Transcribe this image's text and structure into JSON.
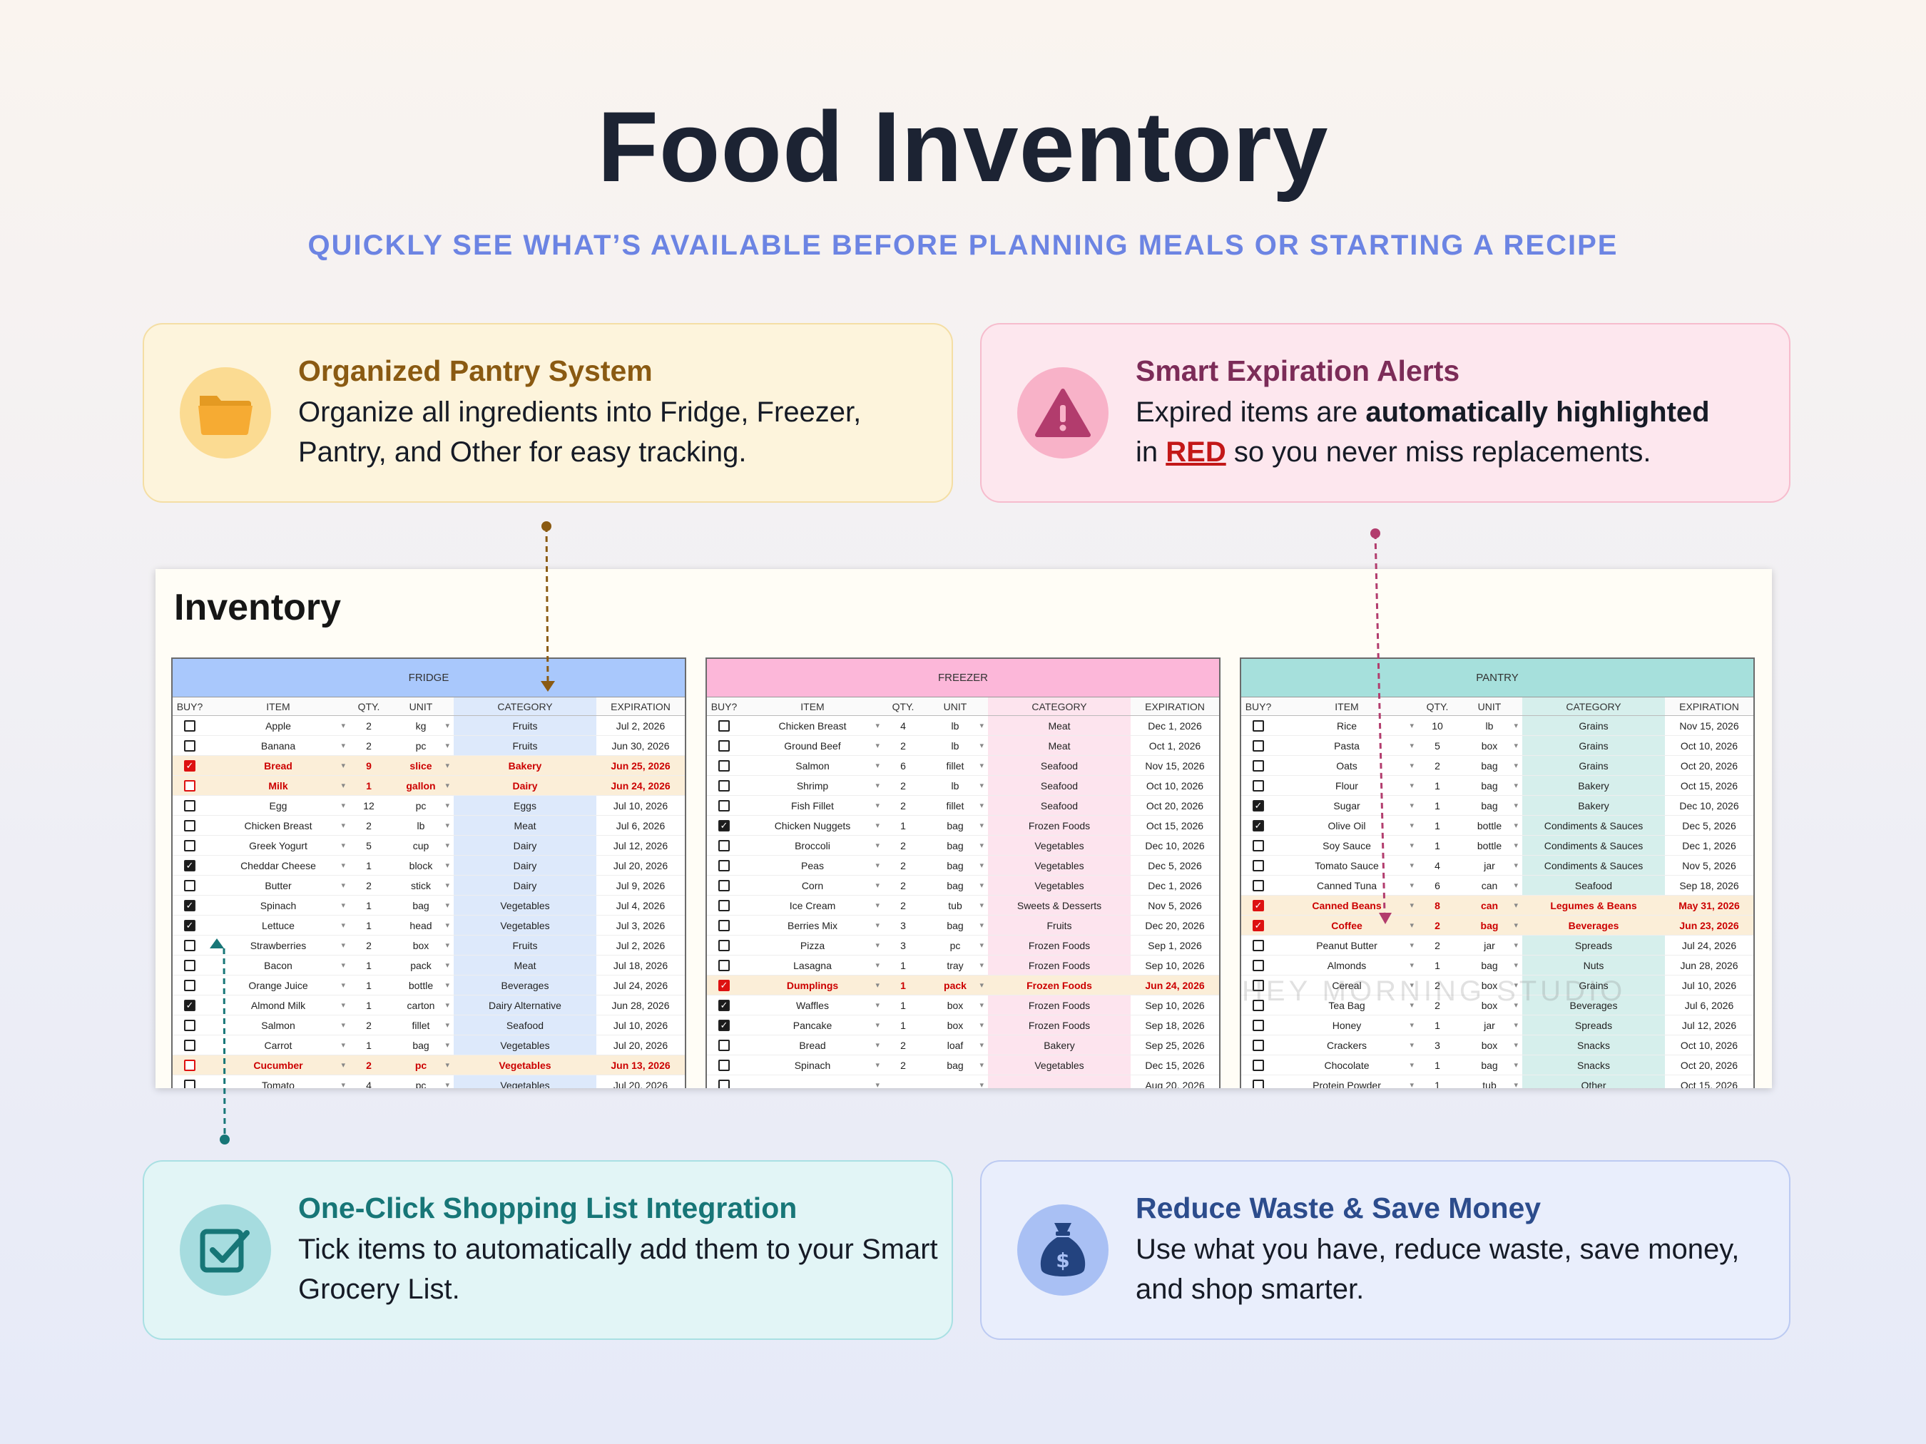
{
  "page": {
    "title": "Food Inventory",
    "subtitle": "QUICKLY SEE WHAT’S AVAILABLE BEFORE PLANNING MEALS OR STARTING A RECIPE"
  },
  "features": {
    "pantry": {
      "title": "Organized Pantry System",
      "desc": "Organize all ingredients into Fridge, Freezer, Pantry, and Other for easy tracking.",
      "icon": "folder-icon"
    },
    "alerts": {
      "title": "Smart Expiration Alerts",
      "desc_before": "Expired items are ",
      "desc_bold": "automatically highlighted",
      "desc_in": " in ",
      "desc_red": "RED",
      "desc_after": " so you never miss replacements.",
      "icon": "warning-icon"
    },
    "shopping": {
      "title": "One-Click Shopping List Integration",
      "desc": "Tick items to automatically add them to your Smart Grocery List.",
      "icon": "checkbox-icon"
    },
    "savings": {
      "title": "Reduce Waste & Save Money",
      "desc": "Use what you have, reduce waste, save money, and shop smarter.",
      "icon": "money-bag-icon"
    }
  },
  "sheet": {
    "title": "Inventory",
    "watermark": "HEY MORNING STUDIO",
    "columns": [
      "BUY?",
      "ITEM",
      "QTY.",
      "UNIT",
      "CATEGORY",
      "EXPIRATION"
    ],
    "tables": [
      {
        "name": "FRIDGE",
        "rows": [
          {
            "buy": false,
            "item": "Apple",
            "qty": "2",
            "unit": "kg",
            "category": "Fruits",
            "exp": "Jul 2, 2026",
            "expired": false
          },
          {
            "buy": false,
            "item": "Banana",
            "qty": "2",
            "unit": "pc",
            "category": "Fruits",
            "exp": "Jun 30, 2026",
            "expired": false
          },
          {
            "buy": true,
            "item": "Bread",
            "qty": "9",
            "unit": "slice",
            "category": "Bakery",
            "exp": "Jun 25, 2026",
            "expired": true
          },
          {
            "buy": false,
            "item": "Milk",
            "qty": "1",
            "unit": "gallon",
            "category": "Dairy",
            "exp": "Jun 24, 2026",
            "expired": true
          },
          {
            "buy": false,
            "item": "Egg",
            "qty": "12",
            "unit": "pc",
            "category": "Eggs",
            "exp": "Jul 10, 2026",
            "expired": false
          },
          {
            "buy": false,
            "item": "Chicken Breast",
            "qty": "2",
            "unit": "lb",
            "category": "Meat",
            "exp": "Jul 6, 2026",
            "expired": false
          },
          {
            "buy": false,
            "item": "Greek Yogurt",
            "qty": "5",
            "unit": "cup",
            "category": "Dairy",
            "exp": "Jul 12, 2026",
            "expired": false
          },
          {
            "buy": true,
            "item": "Cheddar Cheese",
            "qty": "1",
            "unit": "block",
            "category": "Dairy",
            "exp": "Jul 20, 2026",
            "expired": false
          },
          {
            "buy": false,
            "item": "Butter",
            "qty": "2",
            "unit": "stick",
            "category": "Dairy",
            "exp": "Jul 9, 2026",
            "expired": false
          },
          {
            "buy": true,
            "item": "Spinach",
            "qty": "1",
            "unit": "bag",
            "category": "Vegetables",
            "exp": "Jul 4, 2026",
            "expired": false
          },
          {
            "buy": true,
            "item": "Lettuce",
            "qty": "1",
            "unit": "head",
            "category": "Vegetables",
            "exp": "Jul 3, 2026",
            "expired": false
          },
          {
            "buy": false,
            "item": "Strawberries",
            "qty": "2",
            "unit": "box",
            "category": "Fruits",
            "exp": "Jul 2, 2026",
            "expired": false
          },
          {
            "buy": false,
            "item": "Bacon",
            "qty": "1",
            "unit": "pack",
            "category": "Meat",
            "exp": "Jul 18, 2026",
            "expired": false
          },
          {
            "buy": false,
            "item": "Orange Juice",
            "qty": "1",
            "unit": "bottle",
            "category": "Beverages",
            "exp": "Jul 24, 2026",
            "expired": false
          },
          {
            "buy": true,
            "item": "Almond Milk",
            "qty": "1",
            "unit": "carton",
            "category": "Dairy Alternative",
            "exp": "Jun 28, 2026",
            "expired": false
          },
          {
            "buy": false,
            "item": "Salmon",
            "qty": "2",
            "unit": "fillet",
            "category": "Seafood",
            "exp": "Jul 10, 2026",
            "expired": false
          },
          {
            "buy": false,
            "item": "Carrot",
            "qty": "1",
            "unit": "bag",
            "category": "Vegetables",
            "exp": "Jul 20, 2026",
            "expired": false
          },
          {
            "buy": false,
            "item": "Cucumber",
            "qty": "2",
            "unit": "pc",
            "category": "Vegetables",
            "exp": "Jun 13, 2026",
            "expired": true
          },
          {
            "buy": false,
            "item": "Tomato",
            "qty": "4",
            "unit": "pc",
            "category": "Vegetables",
            "exp": "Jul 20, 2026",
            "expired": false
          }
        ]
      },
      {
        "name": "FREEZER",
        "rows": [
          {
            "buy": false,
            "item": "Chicken Breast",
            "qty": "4",
            "unit": "lb",
            "category": "Meat",
            "exp": "Dec 1, 2026",
            "expired": false
          },
          {
            "buy": false,
            "item": "Ground Beef",
            "qty": "2",
            "unit": "lb",
            "category": "Meat",
            "exp": "Oct 1, 2026",
            "expired": false
          },
          {
            "buy": false,
            "item": "Salmon",
            "qty": "6",
            "unit": "fillet",
            "category": "Seafood",
            "exp": "Nov 15, 2026",
            "expired": false
          },
          {
            "buy": false,
            "item": "Shrimp",
            "qty": "2",
            "unit": "lb",
            "category": "Seafood",
            "exp": "Oct 10, 2026",
            "expired": false
          },
          {
            "buy": false,
            "item": "Fish Fillet",
            "qty": "2",
            "unit": "fillet",
            "category": "Seafood",
            "exp": "Oct 20, 2026",
            "expired": false
          },
          {
            "buy": true,
            "item": "Chicken Nuggets",
            "qty": "1",
            "unit": "bag",
            "category": "Frozen Foods",
            "exp": "Oct 15, 2026",
            "expired": false
          },
          {
            "buy": false,
            "item": "Broccoli",
            "qty": "2",
            "unit": "bag",
            "category": "Vegetables",
            "exp": "Dec 10, 2026",
            "expired": false
          },
          {
            "buy": false,
            "item": "Peas",
            "qty": "2",
            "unit": "bag",
            "category": "Vegetables",
            "exp": "Dec 5, 2026",
            "expired": false
          },
          {
            "buy": false,
            "item": "Corn",
            "qty": "2",
            "unit": "bag",
            "category": "Vegetables",
            "exp": "Dec 1, 2026",
            "expired": false
          },
          {
            "buy": false,
            "item": "Ice Cream",
            "qty": "2",
            "unit": "tub",
            "category": "Sweets & Desserts",
            "exp": "Nov 5, 2026",
            "expired": false
          },
          {
            "buy": false,
            "item": "Berries Mix",
            "qty": "3",
            "unit": "bag",
            "category": "Fruits",
            "exp": "Dec 20, 2026",
            "expired": false
          },
          {
            "buy": false,
            "item": "Pizza",
            "qty": "3",
            "unit": "pc",
            "category": "Frozen Foods",
            "exp": "Sep 1, 2026",
            "expired": false
          },
          {
            "buy": false,
            "item": "Lasagna",
            "qty": "1",
            "unit": "tray",
            "category": "Frozen Foods",
            "exp": "Sep 10, 2026",
            "expired": false
          },
          {
            "buy": true,
            "item": "Dumplings",
            "qty": "1",
            "unit": "pack",
            "category": "Frozen Foods",
            "exp": "Jun 24, 2026",
            "expired": true
          },
          {
            "buy": true,
            "item": "Waffles",
            "qty": "1",
            "unit": "box",
            "category": "Frozen Foods",
            "exp": "Sep 10, 2026",
            "expired": false
          },
          {
            "buy": true,
            "item": "Pancake",
            "qty": "1",
            "unit": "box",
            "category": "Frozen Foods",
            "exp": "Sep 18, 2026",
            "expired": false
          },
          {
            "buy": false,
            "item": "Bread",
            "qty": "2",
            "unit": "loaf",
            "category": "Bakery",
            "exp": "Sep 25, 2026",
            "expired": false
          },
          {
            "buy": false,
            "item": "Spinach",
            "qty": "2",
            "unit": "bag",
            "category": "Vegetables",
            "exp": "Dec 15, 2026",
            "expired": false
          },
          {
            "buy": false,
            "item": "",
            "qty": "",
            "unit": "",
            "category": "",
            "exp": "Aug 20, 2026",
            "expired": false
          }
        ]
      },
      {
        "name": "PANTRY",
        "rows": [
          {
            "buy": false,
            "item": "Rice",
            "qty": "10",
            "unit": "lb",
            "category": "Grains",
            "exp": "Nov 15, 2026",
            "expired": false
          },
          {
            "buy": false,
            "item": "Pasta",
            "qty": "5",
            "unit": "box",
            "category": "Grains",
            "exp": "Oct 10, 2026",
            "expired": false
          },
          {
            "buy": false,
            "item": "Oats",
            "qty": "2",
            "unit": "bag",
            "category": "Grains",
            "exp": "Oct 20, 2026",
            "expired": false
          },
          {
            "buy": false,
            "item": "Flour",
            "qty": "1",
            "unit": "bag",
            "category": "Bakery",
            "exp": "Oct 15, 2026",
            "expired": false
          },
          {
            "buy": true,
            "item": "Sugar",
            "qty": "1",
            "unit": "bag",
            "category": "Bakery",
            "exp": "Dec 10, 2026",
            "expired": false
          },
          {
            "buy": true,
            "item": "Olive Oil",
            "qty": "1",
            "unit": "bottle",
            "category": "Condiments & Sauces",
            "exp": "Dec 5, 2026",
            "expired": false
          },
          {
            "buy": false,
            "item": "Soy Sauce",
            "qty": "1",
            "unit": "bottle",
            "category": "Condiments & Sauces",
            "exp": "Dec 1, 2026",
            "expired": false
          },
          {
            "buy": false,
            "item": "Tomato Sauce",
            "qty": "4",
            "unit": "jar",
            "category": "Condiments & Sauces",
            "exp": "Nov 5, 2026",
            "expired": false
          },
          {
            "buy": false,
            "item": "Canned Tuna",
            "qty": "6",
            "unit": "can",
            "category": "Seafood",
            "exp": "Sep 18, 2026",
            "expired": false
          },
          {
            "buy": true,
            "item": "Canned Beans",
            "qty": "8",
            "unit": "can",
            "category": "Legumes & Beans",
            "exp": "May 31, 2026",
            "expired": true
          },
          {
            "buy": true,
            "item": "Coffee",
            "qty": "2",
            "unit": "bag",
            "category": "Beverages",
            "exp": "Jun 23, 2026",
            "expired": true
          },
          {
            "buy": false,
            "item": "Peanut Butter",
            "qty": "2",
            "unit": "jar",
            "category": "Spreads",
            "exp": "Jul 24, 2026",
            "expired": false
          },
          {
            "buy": false,
            "item": "Almonds",
            "qty": "1",
            "unit": "bag",
            "category": "Nuts",
            "exp": "Jun 28, 2026",
            "expired": false
          },
          {
            "buy": false,
            "item": "Cereal",
            "qty": "2",
            "unit": "box",
            "category": "Grains",
            "exp": "Jul 10, 2026",
            "expired": false
          },
          {
            "buy": false,
            "item": "Tea Bag",
            "qty": "2",
            "unit": "box",
            "category": "Beverages",
            "exp": "Jul 6, 2026",
            "expired": false
          },
          {
            "buy": false,
            "item": "Honey",
            "qty": "1",
            "unit": "jar",
            "category": "Spreads",
            "exp": "Jul 12, 2026",
            "expired": false
          },
          {
            "buy": false,
            "item": "Crackers",
            "qty": "3",
            "unit": "box",
            "category": "Snacks",
            "exp": "Oct 10, 2026",
            "expired": false
          },
          {
            "buy": false,
            "item": "Chocolate",
            "qty": "1",
            "unit": "bag",
            "category": "Snacks",
            "exp": "Oct 20, 2026",
            "expired": false
          },
          {
            "buy": false,
            "item": "Protein Powder",
            "qty": "1",
            "unit": "tub",
            "category": "Other",
            "exp": "Oct 15, 2026",
            "expired": false
          }
        ]
      }
    ]
  },
  "colors": {
    "fridge_header": "#a9c8fc",
    "freezer_header": "#fcb7d9",
    "pantry_header": "#a6e0dc",
    "expired_text": "#c31818",
    "subtitle": "#6c84e3"
  }
}
